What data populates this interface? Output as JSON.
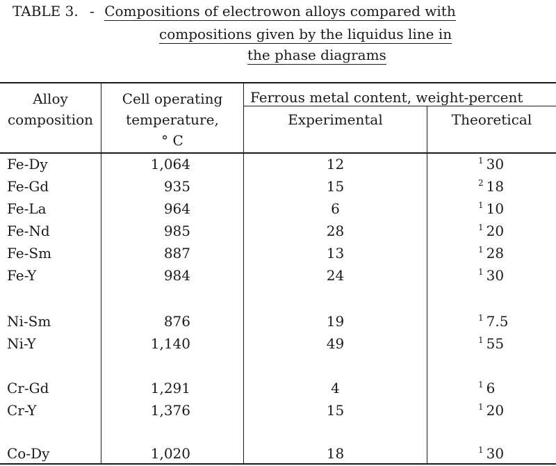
{
  "caption": {
    "prefix": "TABLE 3.",
    "dash": "-",
    "line1": "Compositions of electrowon alloys compared with",
    "line2": "compositions given by the liquidus line in",
    "line3": "the phase diagrams"
  },
  "headers": {
    "alloy": [
      "Alloy",
      "composition"
    ],
    "temp": [
      "Cell operating",
      "temperature,",
      "° C"
    ],
    "group": "Ferrous metal content, weight-percent",
    "experimental": "Experimental",
    "theoretical": "Theoretical"
  },
  "rows": [
    {
      "alloy": "Fe-Dy",
      "temp": "1,064",
      "exp": "12",
      "fn": "1",
      "theo": "30"
    },
    {
      "alloy": "Fe-Gd",
      "temp": "935",
      "exp": "15",
      "fn": "2",
      "theo": "18"
    },
    {
      "alloy": "Fe-La",
      "temp": "964",
      "exp": "6",
      "fn": "1",
      "theo": "10"
    },
    {
      "alloy": "Fe-Nd",
      "temp": "985",
      "exp": "28",
      "fn": "1",
      "theo": "20"
    },
    {
      "alloy": "Fe-Sm",
      "temp": "887",
      "exp": "13",
      "fn": "1",
      "theo": "28"
    },
    {
      "alloy": "Fe-Y",
      "temp": "984",
      "exp": "24",
      "fn": "1",
      "theo": "30"
    },
    {
      "alloy": "Ni-Sm",
      "temp": "876",
      "exp": "19",
      "fn": "1",
      "theo": "7.5"
    },
    {
      "alloy": "Ni-Y",
      "temp": "1,140",
      "exp": "49",
      "fn": "1",
      "theo": "55"
    },
    {
      "alloy": "Cr-Gd",
      "temp": "1,291",
      "exp": "4",
      "fn": "1",
      "theo": "6"
    },
    {
      "alloy": "Cr-Y",
      "temp": "1,376",
      "exp": "15",
      "fn": "1",
      "theo": "20"
    },
    {
      "alloy": "Co-Dy",
      "temp": "1,020",
      "exp": "18",
      "fn": "1",
      "theo": "30"
    }
  ]
}
